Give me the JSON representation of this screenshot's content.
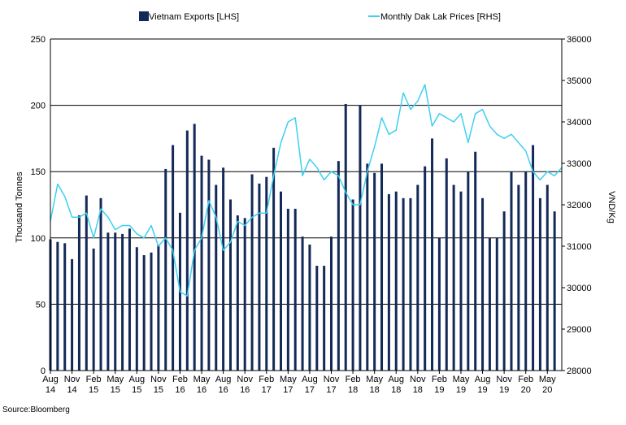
{
  "chart_data": {
    "type": "bar+line",
    "legend": {
      "placement": "top",
      "exports_label": "Vietnam Exports [LHS]",
      "prices_label": "Monthly Dak Lak Prices [RHS]"
    },
    "ylabel_left": "Thousand Tonnes",
    "ylabel_right": "VND/Kg",
    "ylim_left": [
      0,
      250
    ],
    "ylim_right": [
      28000,
      36000
    ],
    "left_ticks": [
      "0",
      "50",
      "100",
      "150",
      "200",
      "250"
    ],
    "right_ticks": [
      "28000",
      "29000",
      "30000",
      "31000",
      "32000",
      "33000",
      "34000",
      "35000",
      "36000"
    ],
    "grid": "horizontal",
    "start_month": "Aug 2014",
    "x_tick_labels": [
      {
        "index": 0,
        "month": "Aug",
        "year": "14"
      },
      {
        "index": 3,
        "month": "Nov",
        "year": "14"
      },
      {
        "index": 6,
        "month": "Feb",
        "year": "15"
      },
      {
        "index": 9,
        "month": "May",
        "year": "15"
      },
      {
        "index": 12,
        "month": "Aug",
        "year": "15"
      },
      {
        "index": 15,
        "month": "Nov",
        "year": "15"
      },
      {
        "index": 18,
        "month": "Feb",
        "year": "16"
      },
      {
        "index": 21,
        "month": "May",
        "year": "16"
      },
      {
        "index": 24,
        "month": "Aug",
        "year": "16"
      },
      {
        "index": 27,
        "month": "Nov",
        "year": "16"
      },
      {
        "index": 30,
        "month": "Feb",
        "year": "17"
      },
      {
        "index": 33,
        "month": "May",
        "year": "17"
      },
      {
        "index": 36,
        "month": "Aug",
        "year": "17"
      },
      {
        "index": 39,
        "month": "Nov",
        "year": "17"
      },
      {
        "index": 42,
        "month": "Feb",
        "year": "18"
      },
      {
        "index": 45,
        "month": "May",
        "year": "18"
      },
      {
        "index": 48,
        "month": "Aug",
        "year": "18"
      },
      {
        "index": 51,
        "month": "Nov",
        "year": "18"
      },
      {
        "index": 54,
        "month": "Feb",
        "year": "19"
      },
      {
        "index": 57,
        "month": "May",
        "year": "19"
      },
      {
        "index": 60,
        "month": "Aug",
        "year": "19"
      },
      {
        "index": 63,
        "month": "Nov",
        "year": "19"
      },
      {
        "index": 66,
        "month": "Feb",
        "year": "20"
      },
      {
        "index": 69,
        "month": "May",
        "year": "20"
      }
    ],
    "series": [
      {
        "name": "Vietnam Exports [LHS]",
        "type": "bar",
        "axis": "left",
        "color": "#142957",
        "values": [
          99,
          97,
          96,
          84,
          117,
          132,
          92,
          130,
          104,
          104,
          103,
          107,
          93,
          87,
          89,
          95,
          152,
          170,
          119,
          181,
          186,
          162,
          159,
          140,
          153,
          129,
          117,
          115,
          148,
          141,
          146,
          168,
          135,
          122,
          122,
          101,
          95,
          79,
          79,
          101,
          158,
          201,
          129,
          200,
          156,
          149,
          156,
          133,
          135,
          130,
          130,
          140,
          154,
          175,
          100,
          160,
          140,
          135,
          150,
          165,
          130,
          100,
          100,
          120,
          150,
          140,
          150,
          170,
          130,
          140,
          120
        ]
      },
      {
        "name": "Monthly Dak Lak Prices [RHS]",
        "type": "line",
        "axis": "right",
        "color": "#3ed0f0",
        "values": [
          31600,
          32500,
          32200,
          31700,
          31700,
          31800,
          31200,
          31900,
          31700,
          31400,
          31500,
          31500,
          31300,
          31200,
          31500,
          31000,
          31200,
          30900,
          29900,
          29800,
          30900,
          31200,
          32100,
          31700,
          30900,
          31100,
          31600,
          31500,
          31700,
          31800,
          31800,
          32700,
          33500,
          34000,
          34100,
          32700,
          33100,
          32900,
          32600,
          32800,
          32700,
          32300,
          32000,
          32000,
          32800,
          33400,
          34100,
          33700,
          33800,
          34700,
          34300,
          34500,
          34900,
          33900,
          34200,
          34100,
          34000,
          34200,
          33500,
          34200,
          34300,
          33900,
          33700,
          33600,
          33700,
          33500,
          33300,
          32800,
          32600,
          32800,
          32700,
          32900
        ]
      }
    ],
    "source": "Source:Bloomberg"
  }
}
